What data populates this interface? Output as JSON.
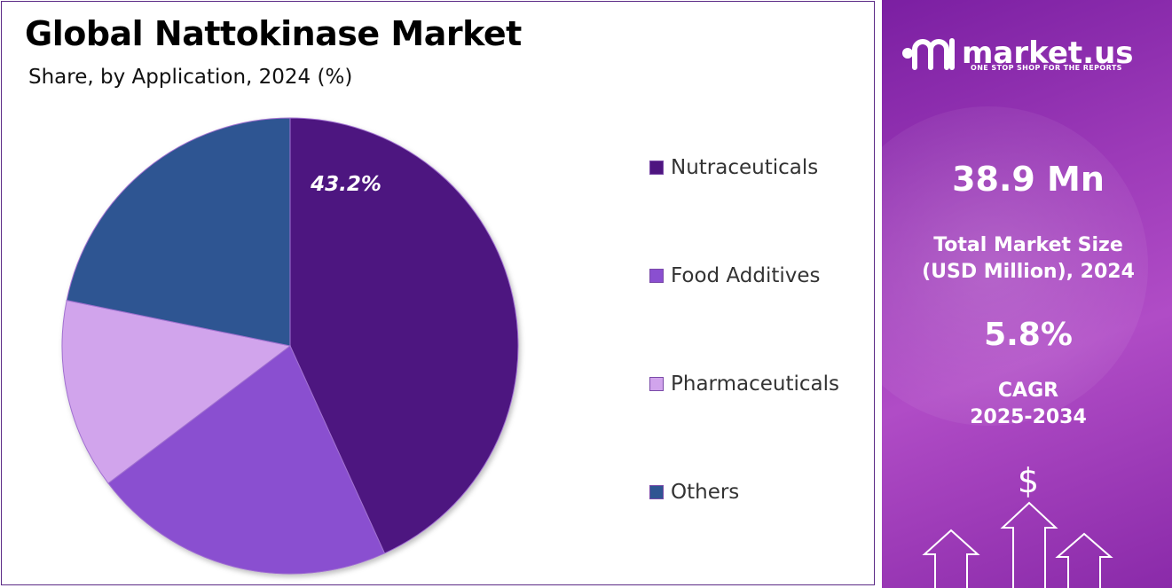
{
  "header": {
    "title": "Global Nattokinase Market",
    "subtitle": "Share, by Application, 2024 (%)"
  },
  "chart_data": {
    "type": "pie",
    "title": "Global Nattokinase Market",
    "subtitle": "Share, by Application, 2024 (%)",
    "categories": [
      "Nutraceuticals",
      "Food Additives",
      "Pharmaceuticals",
      "Others"
    ],
    "values": [
      43.2,
      21.5,
      13.5,
      21.8
    ],
    "colors": [
      "#4e1580",
      "#8a4fd0",
      "#d1a4ec",
      "#2f5592"
    ],
    "data_labels": [
      "43.2%",
      "",
      "",
      ""
    ],
    "start_angle": "12 o'clock, clockwise",
    "legend_position": "right"
  },
  "sidebar": {
    "brand_name": "market.us",
    "brand_tagline": "ONE STOP SHOP FOR THE REPORTS",
    "market_size_value": "38.9 Mn",
    "market_size_label_line1": "Total Market Size",
    "market_size_label_line2": "(USD Million), 2024",
    "cagr_value": "5.8%",
    "cagr_label_line1": "CAGR",
    "cagr_label_line2": "2025-2034",
    "currency_symbol": "$",
    "accent_color": "#9c3ab8"
  }
}
